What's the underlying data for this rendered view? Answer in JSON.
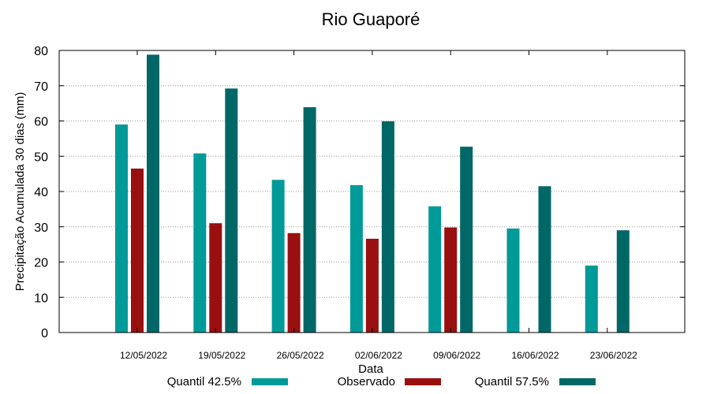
{
  "chart_data": {
    "type": "bar",
    "title": "Rio Guaporé",
    "xlabel": "Data",
    "ylabel": "Precipitação Acumulada 30 dias (mm)",
    "ylim": [
      0,
      80
    ],
    "yticks": [
      0,
      10,
      20,
      30,
      40,
      50,
      60,
      70,
      80
    ],
    "grid": true,
    "legend_position": "bottom",
    "categories": [
      "12/05/2022",
      "19/05/2022",
      "26/05/2022",
      "02/06/2022",
      "09/06/2022",
      "16/06/2022",
      "23/06/2022"
    ],
    "series": [
      {
        "name": "Quantil 42.5%",
        "color": "#009a99",
        "values": [
          59,
          50.8,
          43.3,
          41.8,
          35.8,
          29.5,
          19
        ]
      },
      {
        "name": "Observado",
        "color": "#9a0f0f",
        "values": [
          46.5,
          31,
          28.2,
          26.6,
          29.8,
          null,
          null
        ]
      },
      {
        "name": "Quantil 57.5%",
        "color": "#006767",
        "values": [
          78.8,
          69.2,
          63.9,
          59.9,
          52.7,
          41.5,
          29
        ]
      }
    ]
  }
}
